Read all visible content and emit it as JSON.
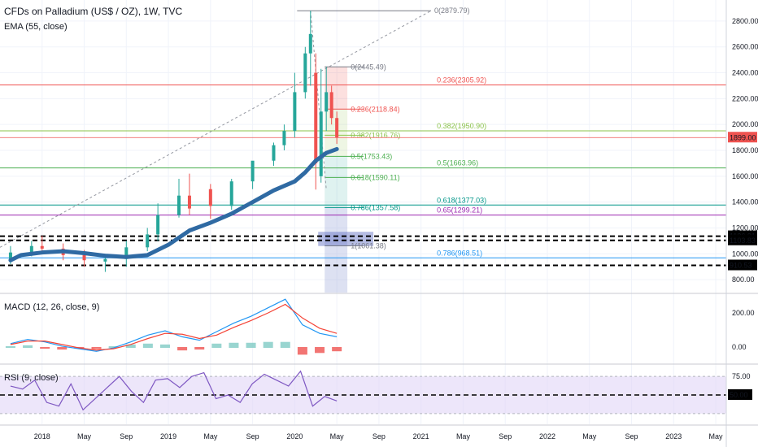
{
  "header": {
    "title": "CFDs on Palladium (US$ / OZ), 1W, TVC",
    "indicator": "EMA (55, close)"
  },
  "colors": {
    "up": "#26a69a",
    "down": "#ef5350",
    "ema": "#2f6aa3",
    "macd": "#2196f3",
    "signal": "#f44336",
    "rsi": "#7e57c2",
    "rsi_band": "#e1d5f7",
    "grid": "#f0f3fa",
    "price_label": "#ef5350"
  },
  "chart_data": [
    {
      "type": "candlestick",
      "title": "CFDs on Palladium (US$ / OZ), 1W, TVC",
      "ylim": [
        700,
        2900
      ],
      "y_ticks": [
        "2800.00",
        "2600.00",
        "2400.00",
        "2200.00",
        "2000.00",
        "1800.00",
        "1600.00",
        "1400.00",
        "1200.00",
        "1000.00",
        "800.00"
      ],
      "x_ticks": [
        "2018",
        "May",
        "Sep",
        "2019",
        "May",
        "Sep",
        "2020",
        "May",
        "Sep",
        "2021",
        "May",
        "Sep",
        "2022",
        "May",
        "Sep",
        "2023",
        "May"
      ],
      "x_tick_dates": [
        "2018-01",
        "2018-05",
        "2018-09",
        "2019-01",
        "2019-05",
        "2019-09",
        "2020-01",
        "2020-05",
        "2020-09",
        "2021-01",
        "2021-05",
        "2021-09",
        "2022-01",
        "2022-05",
        "2022-09",
        "2023-01",
        "2023-05"
      ],
      "last_price": "1899.00",
      "ema_series": {
        "name": "EMA (55, close)",
        "dates": [
          "2017-10",
          "2017-11",
          "2018-01",
          "2018-03",
          "2018-05",
          "2018-07",
          "2018-09",
          "2018-11",
          "2019-01",
          "2019-03",
          "2019-05",
          "2019-07",
          "2019-09",
          "2019-11",
          "2020-01",
          "2020-02",
          "2020-03",
          "2020-04",
          "2020-05"
        ],
        "values": [
          950,
          990,
          1010,
          1020,
          1005,
          985,
          975,
          990,
          1070,
          1180,
          1240,
          1310,
          1400,
          1490,
          1560,
          1630,
          1720,
          1780,
          1810
        ]
      },
      "candles": {
        "dates": [
          "2017-10",
          "2017-12",
          "2018-01",
          "2018-03",
          "2018-05",
          "2018-07",
          "2018-09",
          "2018-11",
          "2018-12",
          "2019-02",
          "2019-03",
          "2019-05",
          "2019-07",
          "2019-09",
          "2019-11",
          "2019-12",
          "2020-01",
          "2020-02",
          "2020-02b",
          "2020-03",
          "2020-03b",
          "2020-04",
          "2020-04b",
          "2020-05"
        ],
        "open": [
          950,
          1010,
          1060,
          1040,
          990,
          940,
          960,
          1050,
          1150,
          1300,
          1450,
          1500,
          1370,
          1560,
          1720,
          1840,
          1950,
          2250,
          2550,
          2400,
          1600,
          2100,
          2250,
          2050
        ],
        "high": [
          1060,
          1100,
          1140,
          1080,
          1030,
          980,
          1100,
          1200,
          1390,
          1580,
          1620,
          1540,
          1580,
          1700,
          1860,
          2000,
          2400,
          2600,
          2879.79,
          2550,
          2430,
          2445.49,
          2300,
          2100
        ],
        "low": [
          920,
          980,
          1000,
          950,
          900,
          860,
          900,
          1020,
          1100,
          1280,
          1300,
          1270,
          1340,
          1500,
          1680,
          1800,
          1900,
          2200,
          2300,
          1497,
          1550,
          1950,
          2000,
          1850
        ],
        "close": [
          1010,
          1060,
          1040,
          990,
          950,
          960,
          1050,
          1150,
          1300,
          1450,
          1350,
          1370,
          1560,
          1720,
          1840,
          1950,
          2250,
          2550,
          2700,
          1700,
          2100,
          2250,
          2050,
          1899
        ]
      },
      "horizontal_lines": [
        {
          "price": 2305.92,
          "label": "0.236(2305.92)",
          "color": "#ef5350"
        },
        {
          "price": 1950.9,
          "label": "0.382(1950.90)",
          "color": "#8bc34a"
        },
        {
          "price": 1663.96,
          "label": "0.5(1663.96)",
          "color": "#4caf50"
        },
        {
          "price": 1377.03,
          "label": "0.618(1377.03)",
          "color": "#009688"
        },
        {
          "price": 1299.21,
          "label": "0.65(1299.21)",
          "color": "#9c27b0"
        },
        {
          "price": 968.51,
          "label": "0.786(968.51)",
          "color": "#2196f3"
        }
      ],
      "dashed_levels": [
        {
          "price": 1136.31,
          "label": "1136.31"
        },
        {
          "price": 1103.83,
          "label": "1103.83"
        },
        {
          "price": 910.53,
          "label": "910.53"
        }
      ],
      "retracement": {
        "top_label": "0(2879.79)",
        "levels": [
          {
            "price": 2445.49,
            "label": "0(2445.49)",
            "color": "#787b86"
          },
          {
            "price": 2118.84,
            "label": "0.236(2118.84)",
            "color": "#ef5350"
          },
          {
            "price": 1916.76,
            "label": "0.382(1916.76)",
            "color": "#8bc34a"
          },
          {
            "price": 1753.43,
            "label": "0.5(1753.43)",
            "color": "#4caf50"
          },
          {
            "price": 1590.11,
            "label": "0.618(1590.11)",
            "color": "#4caf50"
          },
          {
            "price": 1357.58,
            "label": "0.786(1357.58)",
            "color": "#009688"
          },
          {
            "price": 1061.38,
            "label": "1(1061.38)",
            "color": "#787b86"
          }
        ]
      }
    },
    {
      "type": "line",
      "title": "MACD (12, 26, close, 9)",
      "y_ticks": [
        "200.00",
        "0.00"
      ],
      "series": [
        {
          "name": "MACD",
          "values": [
            20,
            45,
            30,
            5,
            -10,
            -25,
            -5,
            30,
            70,
            95,
            60,
            40,
            90,
            140,
            180,
            230,
            280,
            130,
            80,
            60
          ]
        },
        {
          "name": "Signal",
          "values": [
            15,
            35,
            35,
            15,
            -5,
            -18,
            -10,
            15,
            50,
            80,
            75,
            50,
            70,
            115,
            155,
            200,
            250,
            170,
            110,
            80
          ]
        }
      ]
    },
    {
      "type": "line",
      "title": "RSI (9, close)",
      "y_ticks": [
        "75.00"
      ],
      "mid_label": "50.00",
      "series": [
        {
          "name": "RSI",
          "values": [
            62,
            58,
            70,
            40,
            35,
            65,
            30,
            45,
            60,
            75,
            55,
            40,
            70,
            72,
            60,
            75,
            80,
            45,
            50,
            40,
            65,
            78,
            70,
            62,
            82,
            35,
            48,
            42
          ]
        }
      ]
    }
  ]
}
